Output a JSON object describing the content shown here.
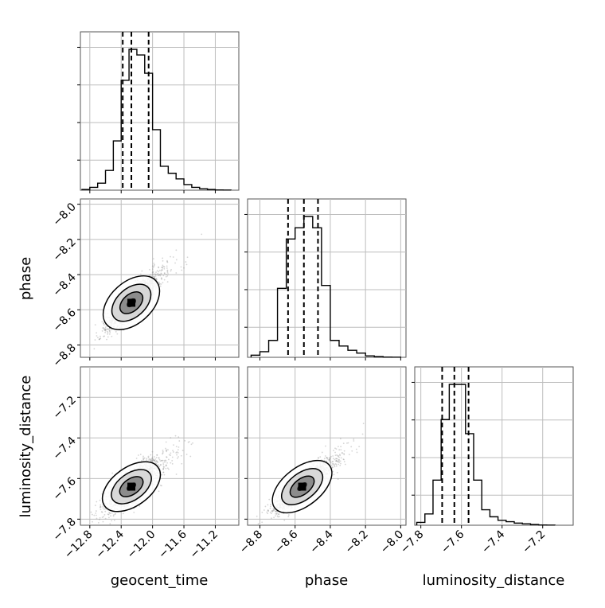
{
  "chart_data": {
    "type": "corner",
    "parameters": [
      "geocent_time",
      "phase",
      "luminosity_distance"
    ],
    "xlabels": [
      "geocent_time",
      "phase",
      "luminosity_distance"
    ],
    "ylabels": [
      "",
      "phase",
      "luminosity_distance"
    ],
    "ranges": {
      "geocent_time": [
        -12.92,
        -10.9
      ],
      "phase": [
        -8.87,
        -7.97
      ],
      "luminosity_distance": [
        -7.83,
        -7.05
      ]
    },
    "ticks": {
      "geocent_time": [
        -12.8,
        -12.4,
        -12.0,
        -11.6,
        -11.2
      ],
      "phase": [
        -8.8,
        -8.6,
        -8.4,
        -8.2,
        -8.0
      ],
      "luminosity_distance": [
        -7.8,
        -7.6,
        -7.4,
        -7.2
      ]
    },
    "tick_labels": {
      "geocent_time": [
        "−12.8",
        "−12.4",
        "−12.0",
        "−11.6",
        "−11.2"
      ],
      "phase": [
        "−8.8",
        "−8.6",
        "−8.4",
        "−8.2",
        "−8.0"
      ],
      "luminosity_distance": [
        "−7.8",
        "−7.6",
        "−7.4",
        "−7.2"
      ]
    },
    "histograms": [
      {
        "param": "geocent_time",
        "bin_edges": [
          -12.9,
          -12.8,
          -12.7,
          -12.6,
          -12.5,
          -12.4,
          -12.3,
          -12.2,
          -12.1,
          -12.0,
          -11.9,
          -11.8,
          -11.7,
          -11.6,
          -11.5,
          -11.4,
          -11.3,
          -11.2,
          -11.1,
          -11.0
        ],
        "counts": [
          0.5,
          2.0,
          5.0,
          14.0,
          35.0,
          78.0,
          100.0,
          96.0,
          83.0,
          43.0,
          17.0,
          12.0,
          8.0,
          4.0,
          2.0,
          1.0,
          0.5,
          0.2,
          0.1
        ],
        "quantiles": [
          -12.38,
          -12.27,
          -12.05
        ]
      },
      {
        "param": "phase",
        "bin_edges": [
          -8.85,
          -8.8,
          -8.75,
          -8.7,
          -8.65,
          -8.6,
          -8.55,
          -8.5,
          -8.45,
          -8.4,
          -8.35,
          -8.3,
          -8.25,
          -8.2,
          -8.15,
          -8.1,
          -8.05,
          -8.0
        ],
        "counts": [
          1.5,
          4.0,
          12.0,
          49.0,
          84.0,
          92.0,
          100.0,
          92.0,
          51.0,
          12.0,
          8.0,
          5.0,
          3.0,
          1.0,
          0.5,
          0.2,
          0.1
        ],
        "quantiles": [
          -8.64,
          -8.55,
          -8.47
        ]
      },
      {
        "param": "luminosity_distance",
        "bin_edges": [
          -7.82,
          -7.78,
          -7.74,
          -7.7,
          -7.66,
          -7.62,
          -7.58,
          -7.54,
          -7.5,
          -7.46,
          -7.42,
          -7.38,
          -7.34,
          -7.3,
          -7.26,
          -7.22,
          -7.18,
          -7.14
        ],
        "counts": [
          2.0,
          8.0,
          32.0,
          75.0,
          100.0,
          100.0,
          65.0,
          32.0,
          11.0,
          6.0,
          3.5,
          2.5,
          1.5,
          1.0,
          0.5,
          0.2,
          0.1
        ],
        "quantiles": [
          -7.695,
          -7.635,
          -7.565
        ]
      }
    ],
    "scatter_2d": [
      {
        "x": "geocent_time",
        "y": "phase",
        "center": [
          -12.27,
          -8.56
        ],
        "std": [
          0.16,
          0.075
        ],
        "corr": 0.85,
        "contour_levels": [
          1.0,
          2.0,
          3.0
        ]
      },
      {
        "x": "geocent_time",
        "y": "luminosity_distance",
        "center": [
          -12.27,
          -7.64
        ],
        "std": [
          0.16,
          0.06
        ],
        "corr": 0.75,
        "contour_levels": [
          1.0,
          2.0,
          3.0
        ]
      },
      {
        "x": "phase",
        "y": "luminosity_distance",
        "center": [
          -8.56,
          -7.64
        ],
        "std": [
          0.075,
          0.06
        ],
        "corr": 0.85,
        "contour_levels": [
          1.0,
          2.0,
          3.0
        ]
      }
    ],
    "grid": true,
    "title": ""
  }
}
